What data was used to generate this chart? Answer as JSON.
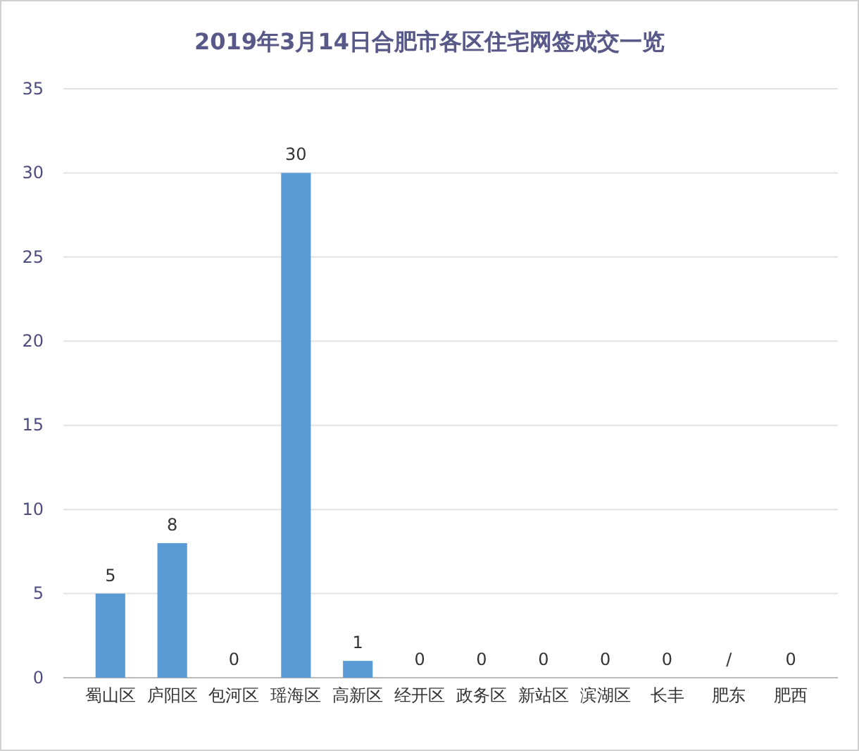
{
  "chart_data": {
    "type": "bar",
    "title": "2019年3月14日合肥市各区住宅网签成交一览",
    "categories": [
      "蜀山区",
      "庐阳区",
      "包河区",
      "瑶海区",
      "高新区",
      "经开区",
      "政务区",
      "新站区",
      "滨湖区",
      "长丰",
      "肥东",
      "肥西"
    ],
    "values": [
      5,
      8,
      0,
      30,
      1,
      0,
      0,
      0,
      0,
      0,
      null,
      0
    ],
    "value_labels": [
      "5",
      "8",
      "0",
      "30",
      "1",
      "0",
      "0",
      "0",
      "0",
      "0",
      "/",
      "0"
    ],
    "color": "#5b9bd5",
    "ylim": [
      0,
      35
    ],
    "yticks": [
      0,
      5,
      10,
      15,
      20,
      25,
      30,
      35
    ],
    "grid": "y"
  }
}
